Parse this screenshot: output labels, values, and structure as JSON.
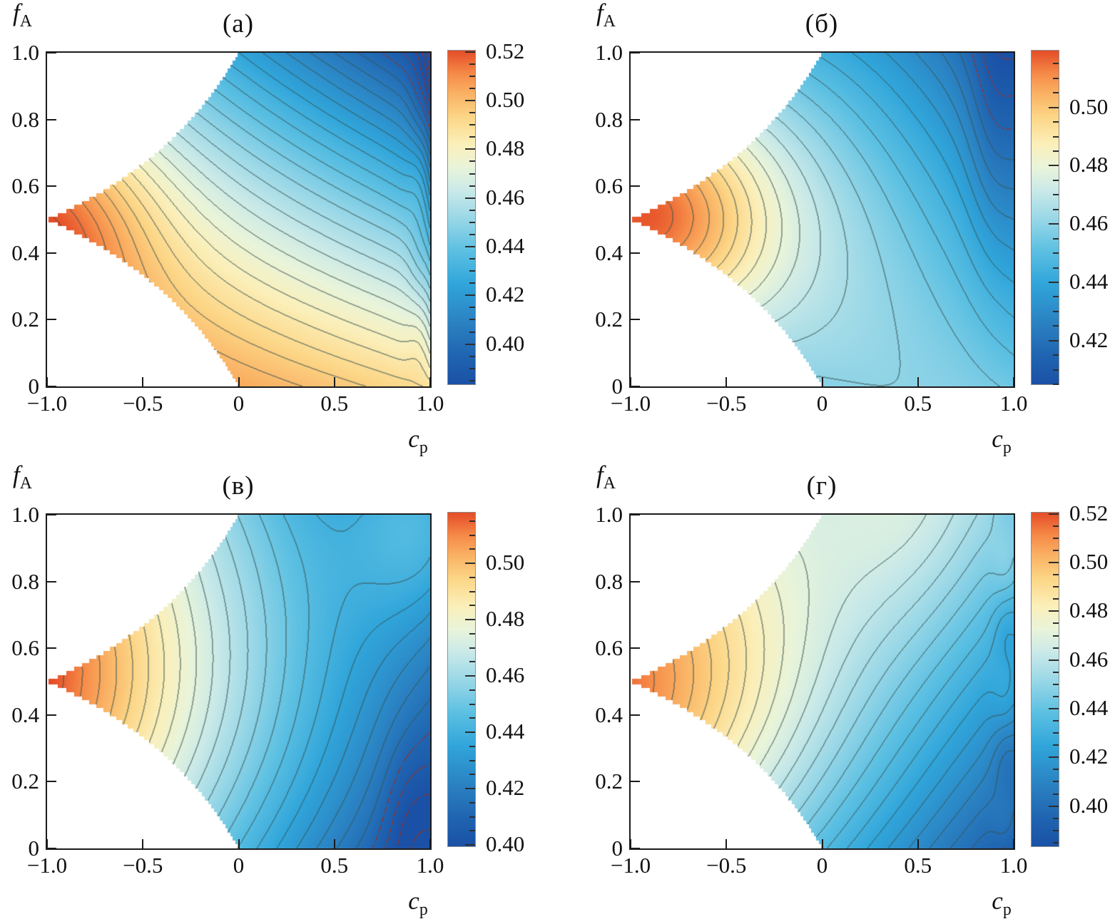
{
  "page": {
    "background": "#ffffff"
  },
  "chart_data": {
    "type": "contour",
    "layout": "2x2 grid of filled contour maps with individual colorbars",
    "contour_step": 0.005,
    "colormap": [
      [
        0.0,
        "#1a51a6"
      ],
      [
        0.08,
        "#1f63b0"
      ],
      [
        0.18,
        "#2a80c1"
      ],
      [
        0.3,
        "#30a5da"
      ],
      [
        0.4,
        "#5cc0e2"
      ],
      [
        0.5,
        "#9bd8e7"
      ],
      [
        0.58,
        "#c9e9e8"
      ],
      [
        0.65,
        "#e9f4da"
      ],
      [
        0.72,
        "#fbefb9"
      ],
      [
        0.8,
        "#fcd687"
      ],
      [
        0.87,
        "#fab264"
      ],
      [
        0.93,
        "#f68b48"
      ],
      [
        1.0,
        "#e44d27"
      ]
    ],
    "domain": {
      "note": "colored region only where f is between f_low and 1-f_low",
      "f_low": "max(0, -c/(1-c))",
      "edge_quantization": 0.012
    },
    "line_style": {
      "normal": "#36514e",
      "low_level": "#8a3530",
      "low_level_threshold_above_vmin": 0.013
    },
    "panels": [
      {
        "id": "a",
        "title": "(а)",
        "y_label_main": "f",
        "y_label_sub": "A",
        "x_label_main": "c",
        "x_label_sub": "p",
        "x_range": [
          -1,
          1
        ],
        "y_range": [
          0,
          1
        ],
        "x_tick_values": [
          -1,
          -0.5,
          0,
          0.5,
          1
        ],
        "x_tick_labels": [
          "−1.0",
          "−0.5",
          "0",
          "0.5",
          "1.0"
        ],
        "y_tick_values": [
          1,
          0.8,
          0.6,
          0.4,
          0.2,
          0
        ],
        "y_tick_labels": [
          "1.0",
          "0.8",
          "0.6",
          "0.4",
          "0.2",
          "0"
        ],
        "colorbar": {
          "vmin": 0.3835,
          "vmax": 0.5205,
          "minor_step": 0.005,
          "tick_values": [
            0.52,
            0.5,
            0.48,
            0.46,
            0.44,
            0.42,
            0.4
          ],
          "tick_labels": [
            "0.52",
            "0.50",
            "0.48",
            "0.46",
            "0.44",
            "0.42",
            "0.40"
          ]
        },
        "field": {
          "b0": 0.468,
          "b1": -0.0275,
          "b2": -0.08,
          "b3": -0.025,
          "b4": -0.012,
          "b5": 0,
          "b6": 0,
          "vertex": {
            "amp": 0.026,
            "sx": 0.55,
            "sy": 0.3
          },
          "edge": {
            "amp": -0.018,
            "w": 0.05,
            "pow": 0.4
          },
          "wiggle": {
            "amp": 0.0035,
            "cx": 0.94,
            "sx": 0.06,
            "freq": 13,
            "phase": 0
          },
          "gaussians": []
        }
      },
      {
        "id": "b",
        "title": "(б)",
        "y_label_main": "f",
        "y_label_sub": "A",
        "x_label_main": "c",
        "x_label_sub": "p",
        "x_range": [
          -1,
          1
        ],
        "y_range": [
          0,
          1
        ],
        "x_tick_values": [
          -1,
          -0.5,
          0,
          0.5,
          1
        ],
        "x_tick_labels": [
          "−1.0",
          "−0.5",
          "0",
          "0.5",
          "1.0"
        ],
        "y_tick_values": [
          1,
          0.8,
          0.6,
          0.4,
          0.2,
          0
        ],
        "y_tick_labels": [
          "1.0",
          "0.8",
          "0.6",
          "0.4",
          "0.2",
          "0"
        ],
        "colorbar": {
          "vmin": 0.405,
          "vmax": 0.5195,
          "minor_step": 0.005,
          "tick_values": [
            0.5,
            0.48,
            0.46,
            0.44,
            0.42
          ],
          "tick_labels": [
            "0.50",
            "0.48",
            "0.46",
            "0.44",
            "0.42"
          ]
        },
        "field": {
          "b0": 0.462,
          "b1": -0.015,
          "b2": -0.015,
          "b3": -0.03,
          "b4": -0.046,
          "b5": 0.04,
          "b6": -0.014,
          "vertex": {
            "amp": 0.055,
            "sx": 0.7,
            "sy": 0.35
          },
          "gaussians": [
            {
              "amp": -0.009,
              "cx": 0.9,
              "cy": 0.85,
              "sx": 0.14,
              "sy": 0.45
            }
          ]
        }
      },
      {
        "id": "v",
        "title": "(в)",
        "y_label_main": "f",
        "y_label_sub": "A",
        "x_label_main": "c",
        "x_label_sub": "p",
        "x_range": [
          -1,
          1
        ],
        "y_range": [
          0,
          1
        ],
        "x_tick_values": [
          -1,
          -0.5,
          0,
          0.5,
          1
        ],
        "x_tick_labels": [
          "−1.0",
          "−0.5",
          "0",
          "0.5",
          "1.0"
        ],
        "y_tick_values": [
          1,
          0.8,
          0.6,
          0.4,
          0.2,
          0
        ],
        "y_tick_labels": [
          "1.0",
          "0.8",
          "0.6",
          "0.4",
          "0.2",
          "0"
        ],
        "colorbar": {
          "vmin": 0.3995,
          "vmax": 0.518,
          "minor_step": 0.005,
          "tick_values": [
            0.5,
            0.48,
            0.46,
            0.44,
            0.42,
            0.4
          ],
          "tick_labels": [
            "0.50",
            "0.48",
            "0.46",
            "0.44",
            "0.42",
            "0.40"
          ]
        },
        "field": {
          "b0": 0.459,
          "b1": -0.045,
          "b2": 0.01,
          "b3": 0.004,
          "b4": -0.04,
          "b5": 0,
          "b6": 0,
          "vertex": {
            "amp": 0.015,
            "sx": 0.8,
            "sy": 0.4
          },
          "gaussians": [
            {
              "amp": 0.03,
              "cx": 1.0,
              "cy": 1.0,
              "sx": 0.4,
              "sy": 0.35
            },
            {
              "amp": -0.008,
              "cx": 0.9,
              "cy": 0.1,
              "sx": 0.15,
              "sy": 0.25
            }
          ]
        }
      },
      {
        "id": "g",
        "title": "(г)",
        "y_label_main": "f",
        "y_label_sub": "A",
        "x_label_main": "c",
        "x_label_sub": "p",
        "x_range": [
          -1,
          1
        ],
        "y_range": [
          0,
          1
        ],
        "x_tick_values": [
          -1,
          -0.5,
          0,
          0.5,
          1
        ],
        "x_tick_labels": [
          "−1.0",
          "−0.5",
          "0",
          "0.5",
          "1.0"
        ],
        "y_tick_values": [
          1,
          0.8,
          0.6,
          0.4,
          0.2,
          0
        ],
        "y_tick_labels": [
          "1.0",
          "0.8",
          "0.6",
          "0.4",
          "0.2",
          "0"
        ],
        "colorbar": {
          "vmin": 0.3835,
          "vmax": 0.5205,
          "minor_step": 0.005,
          "tick_values": [
            0.52,
            0.5,
            0.48,
            0.46,
            0.44,
            0.42,
            0.4
          ],
          "tick_labels": [
            "0.52",
            "0.50",
            "0.48",
            "0.46",
            "0.44",
            "0.42",
            "0.40"
          ]
        },
        "field": {
          "b0": 0.4575,
          "b1": -0.0375,
          "b2": 0.0265,
          "b3": 0.0285,
          "b4": -0.037,
          "b5": 0.027,
          "b6": 0,
          "vertex": {
            "amp": 0.02,
            "sx": 0.85,
            "sy": 0.42
          },
          "wiggle": {
            "amp": 0.005,
            "cx": 0.96,
            "sx": 0.07,
            "freq": 16,
            "phase": 0.5
          },
          "gaussians": [
            {
              "amp": 0.013,
              "cx": 0.45,
              "cy": 1.05,
              "sx": 0.45,
              "sy": 0.4
            }
          ]
        }
      }
    ]
  }
}
